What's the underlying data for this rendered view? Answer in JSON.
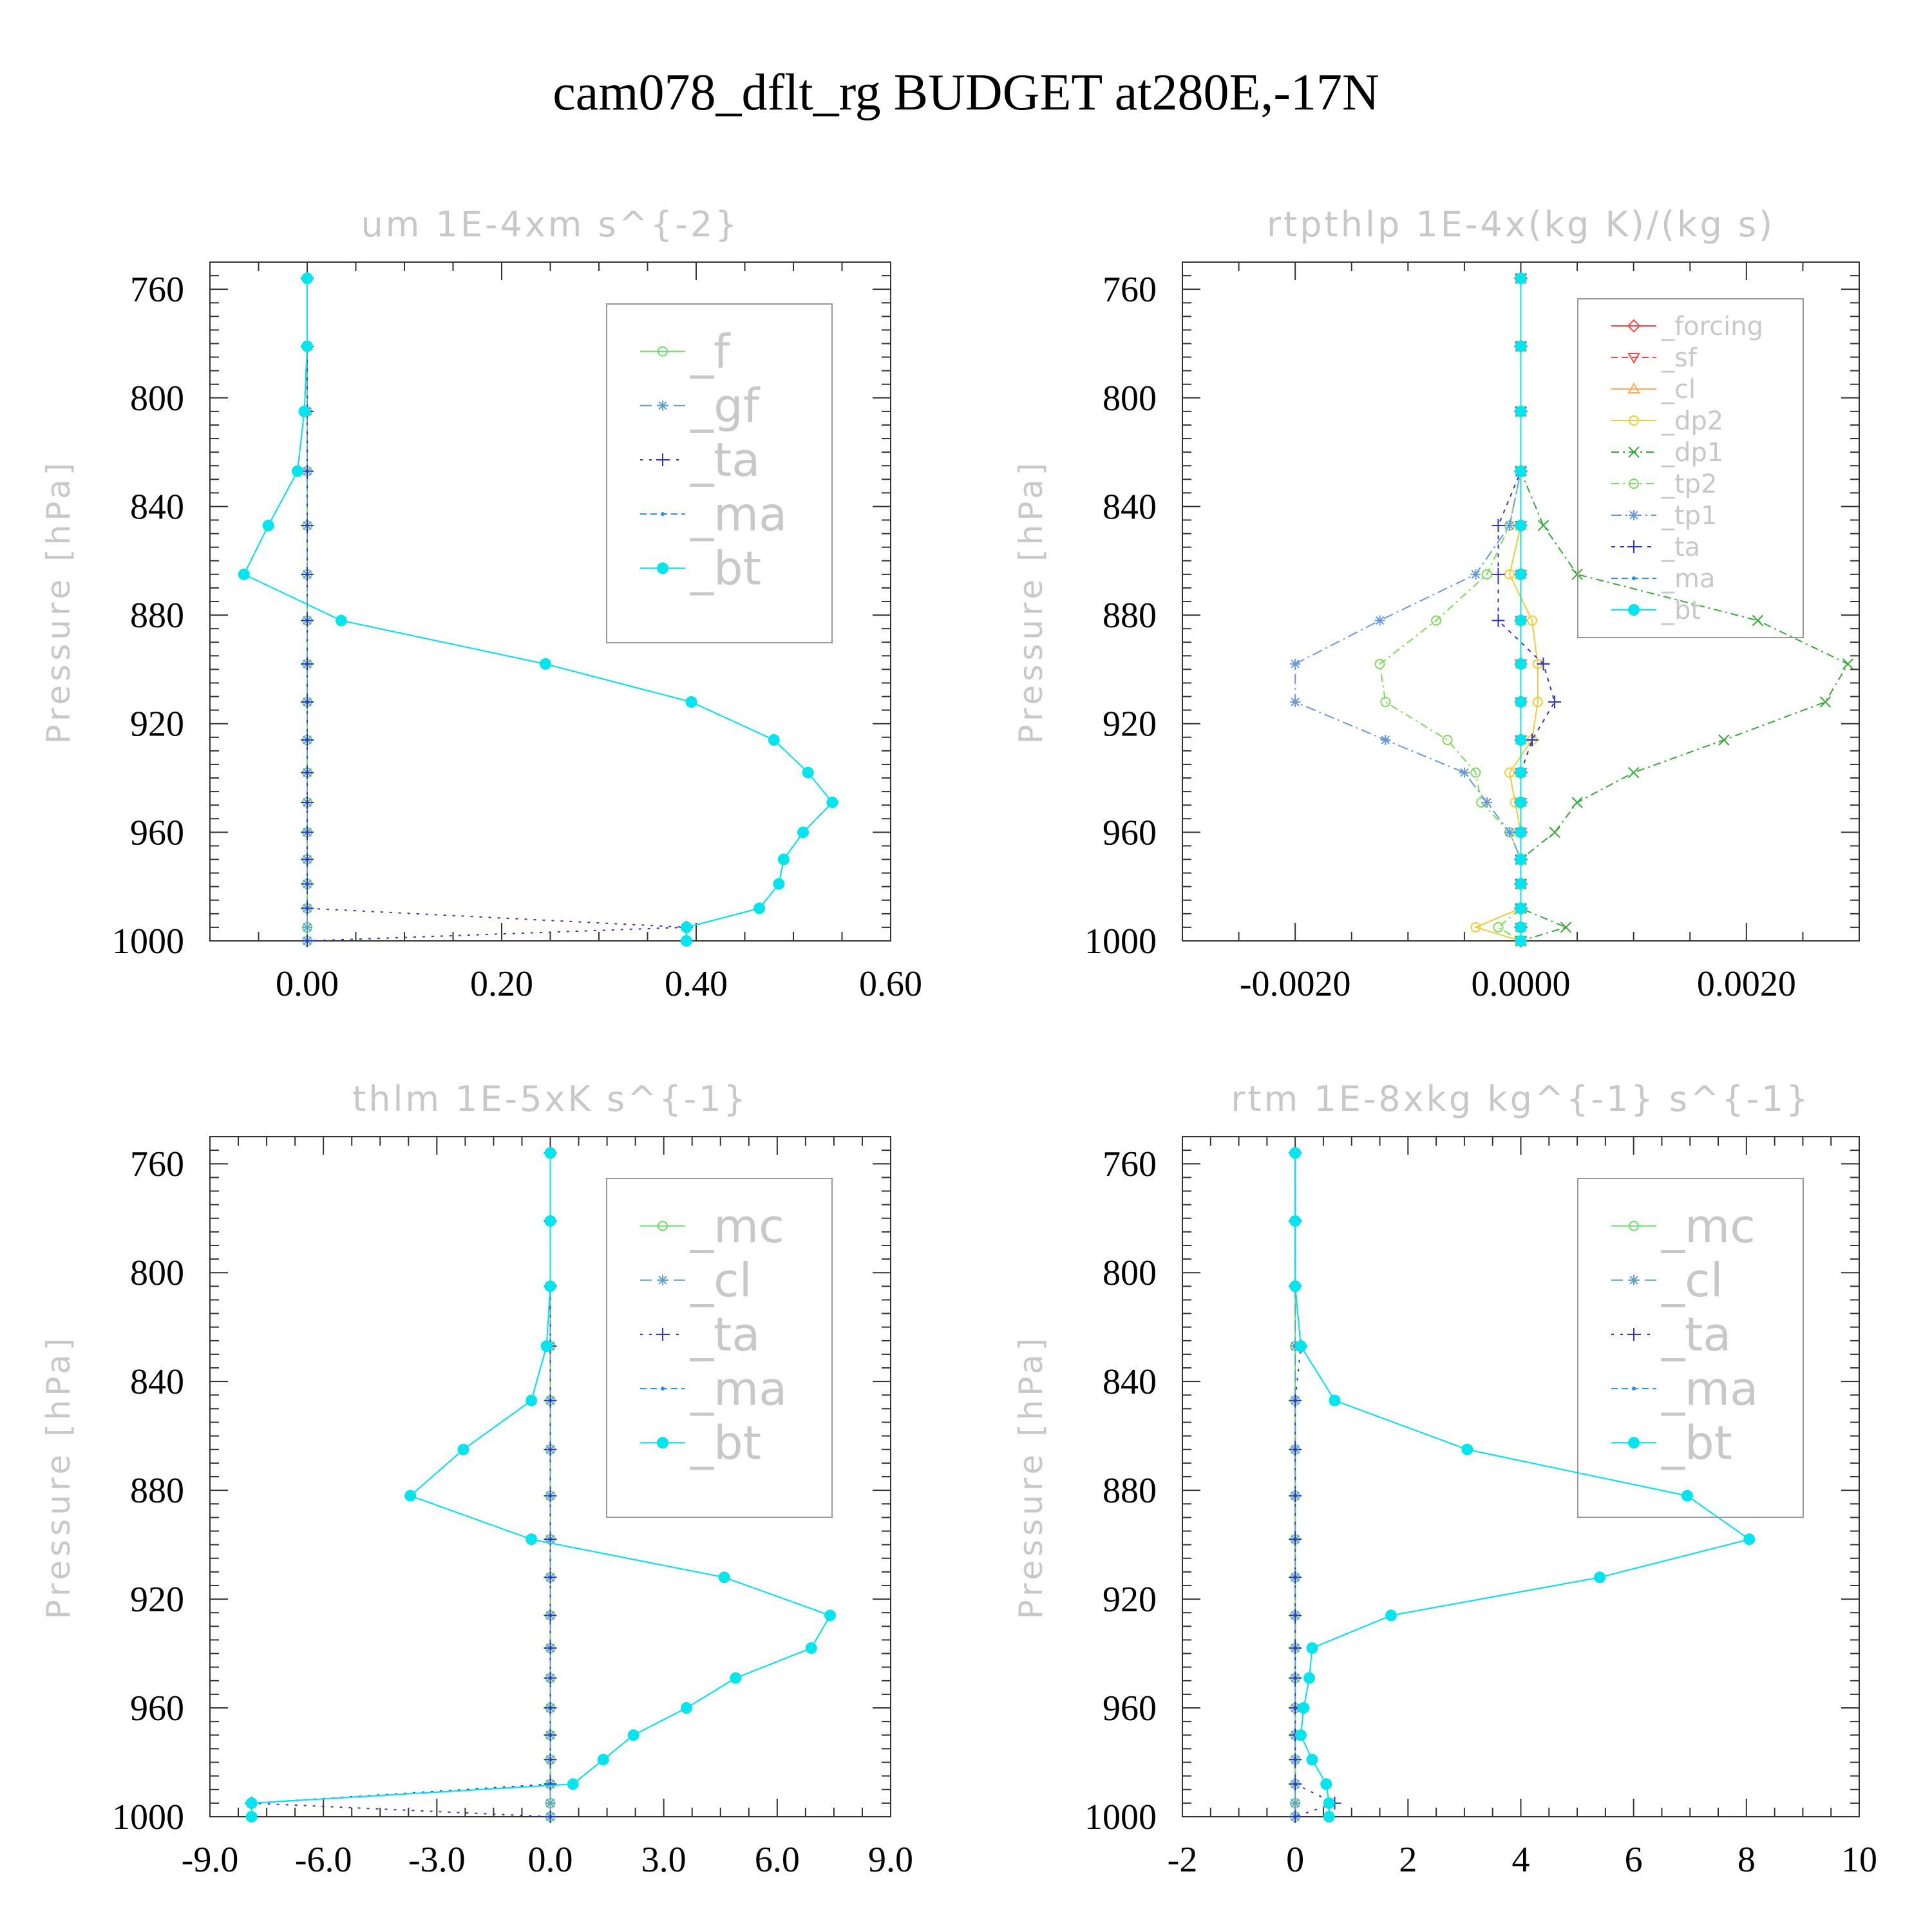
{
  "page": {
    "title": "cam078_dflt_rg  BUDGET at280E,-17N"
  },
  "colors": {
    "axis": "#333333",
    "title_gray": "#c8c8c8",
    "bt": "#00e5ee",
    "ma": "#1e90ff",
    "ta": "#3030d0",
    "f": "#66dd66",
    "mc": "#66dd66",
    "gf": "#5aa0c8",
    "cl_blue": "#5aa0c8",
    "forcing": "#ff4444",
    "sf": "#ff4444",
    "cl_orange": "#ffaa55",
    "dp2": "#eecc33",
    "dp1": "#33aa33",
    "tp2": "#77dd55",
    "tp1": "#6699dd"
  },
  "chart_data": [
    {
      "type": "line",
      "title": "um  1E-4xm s^{-2}",
      "ylabel": "Pressure [hPa]",
      "xlabel": "",
      "xlim": [
        -0.1,
        0.6
      ],
      "ylim": [
        1000,
        750
      ],
      "xticks": [
        0.0,
        0.2,
        0.4,
        0.6
      ],
      "xtick_labels": [
        "0.00",
        "0.20",
        "0.40",
        "0.60"
      ],
      "yticks": [
        760,
        800,
        840,
        880,
        920,
        960,
        1000
      ],
      "ytick_labels": [
        "760",
        "800",
        "840",
        "880",
        "920",
        "960",
        "1000"
      ],
      "y": [
        756,
        781,
        805,
        827,
        847,
        865,
        882,
        898,
        912,
        926,
        938,
        949,
        960,
        970,
        979,
        988,
        995,
        1000
      ],
      "legend": {
        "position": "top-right",
        "size": "large"
      },
      "series": [
        {
          "name": "_f",
          "color_key": "f",
          "marker": "circle-open",
          "dash": "0",
          "values": [
            0,
            0,
            0,
            0,
            0,
            0,
            0,
            0,
            0,
            0,
            0,
            0,
            0,
            0,
            0,
            0,
            0,
            0
          ]
        },
        {
          "name": "_gf",
          "color_key": "gf",
          "marker": "asterisk",
          "dash": "18,8",
          "values": [
            0,
            0,
            0,
            0,
            0,
            0,
            0,
            0,
            0,
            0,
            0,
            0,
            0,
            0,
            0,
            0,
            0,
            0
          ]
        },
        {
          "name": "_ta",
          "color_key": "ta",
          "marker": "plus",
          "dash": "4,10",
          "values": [
            0,
            0,
            0,
            0,
            0,
            0,
            0,
            0,
            0,
            0,
            0,
            0,
            0,
            0,
            0,
            0,
            0.39,
            0.0
          ]
        },
        {
          "name": "_ma",
          "color_key": "ma",
          "marker": "dot",
          "dash": "10,6",
          "values": [
            0.0,
            0.0,
            -0.003,
            -0.01,
            -0.04,
            -0.065,
            0.035,
            0.245,
            0.395,
            0.48,
            0.515,
            0.54,
            0.51,
            0.49,
            0.485,
            0.465,
            0.39,
            0.39
          ]
        },
        {
          "name": "_bt",
          "color_key": "bt",
          "marker": "dot-big",
          "dash": "0",
          "values": [
            0.0,
            0.0,
            -0.003,
            -0.01,
            -0.04,
            -0.065,
            0.035,
            0.245,
            0.395,
            0.48,
            0.515,
            0.54,
            0.51,
            0.49,
            0.485,
            0.465,
            0.39,
            0.39
          ]
        }
      ]
    },
    {
      "type": "line",
      "title": "rtpthlp  1E-4x(kg K)/(kg s)",
      "ylabel": "Pressure [hPa]",
      "xlabel": "",
      "xlim": [
        -0.003,
        0.003
      ],
      "ylim": [
        1000,
        750
      ],
      "xticks": [
        -0.002,
        0.0,
        0.002
      ],
      "xtick_labels": [
        "-0.0020",
        "0.0000",
        "0.0020"
      ],
      "yticks": [
        760,
        800,
        840,
        880,
        920,
        960,
        1000
      ],
      "ytick_labels": [
        "760",
        "800",
        "840",
        "880",
        "920",
        "960",
        "1000"
      ],
      "y": [
        756,
        781,
        805,
        827,
        847,
        865,
        882,
        898,
        912,
        926,
        938,
        949,
        960,
        970,
        979,
        988,
        995,
        1000
      ],
      "legend": {
        "position": "top-right",
        "size": "small"
      },
      "series": [
        {
          "name": "_forcing",
          "color_key": "forcing",
          "marker": "diamond-open",
          "dash": "0",
          "values": [
            0,
            0,
            0,
            0,
            0,
            0,
            0,
            0,
            0,
            0,
            0,
            0,
            0,
            0,
            0,
            0,
            0,
            0
          ]
        },
        {
          "name": "_sf",
          "color_key": "sf",
          "marker": "tri-down",
          "dash": "10,6",
          "values": [
            0,
            0,
            0,
            0,
            0,
            0,
            0,
            0,
            0,
            0,
            0,
            0,
            0,
            0,
            0,
            0,
            0,
            0
          ]
        },
        {
          "name": "_cl",
          "color_key": "cl_orange",
          "marker": "tri-up",
          "dash": "0",
          "values": [
            0,
            0,
            0,
            0,
            0,
            0,
            0,
            0,
            0,
            0,
            0,
            0,
            0,
            0,
            0,
            0,
            0,
            0
          ]
        },
        {
          "name": "_dp2",
          "color_key": "dp2",
          "marker": "circle-open",
          "dash": "0",
          "values": [
            0,
            0,
            0,
            0,
            0,
            -0.0001,
            0.0001,
            0.00015,
            0.00015,
            0.0001,
            -0.0001,
            -5e-05,
            0,
            0,
            0,
            0,
            -0.0004,
            0
          ]
        },
        {
          "name": "_dp1",
          "color_key": "dp1",
          "marker": "x",
          "dash": "12,6,3,6",
          "values": [
            0,
            0,
            0,
            0,
            0.0002,
            0.0005,
            0.0021,
            0.0029,
            0.0027,
            0.0018,
            0.001,
            0.0005,
            0.0003,
            0,
            0,
            0,
            0.0004,
            0
          ]
        },
        {
          "name": "_tp2",
          "color_key": "tp2",
          "marker": "circle-open",
          "dash": "12,6,3,6",
          "values": [
            0,
            0,
            0,
            0,
            -0.0001,
            -0.0003,
            -0.00075,
            -0.00125,
            -0.0012,
            -0.00065,
            -0.0004,
            -0.00035,
            -0.0001,
            0,
            0,
            0,
            -0.0002,
            0
          ]
        },
        {
          "name": "_tp1",
          "color_key": "tp1",
          "marker": "asterisk",
          "dash": "16,6,3,6",
          "values": [
            0,
            0,
            0,
            0,
            -0.0001,
            -0.0004,
            -0.00125,
            -0.002,
            -0.002,
            -0.0012,
            -0.0005,
            -0.0003,
            -0.0001,
            0,
            0,
            0,
            0,
            0
          ]
        },
        {
          "name": "_ta",
          "color_key": "ta",
          "marker": "plus",
          "dash": "6,8",
          "values": [
            0,
            0,
            0,
            0,
            -0.0002,
            -0.0002,
            -0.0002,
            0.0002,
            0.0003,
            0.0001,
            0,
            0,
            0,
            0,
            0,
            0,
            0,
            0
          ]
        },
        {
          "name": "_ma",
          "color_key": "ma",
          "marker": "dot",
          "dash": "10,6",
          "values": [
            0,
            0,
            0,
            0,
            0,
            0,
            0,
            0,
            0,
            0,
            0,
            0,
            0,
            0,
            0,
            0,
            0,
            0
          ]
        },
        {
          "name": "_bt",
          "color_key": "bt",
          "marker": "dot-big",
          "dash": "0",
          "values": [
            0,
            0,
            0,
            0,
            0,
            0,
            0,
            0,
            0,
            0,
            0,
            0,
            0,
            0,
            0,
            0,
            0,
            0
          ]
        }
      ]
    },
    {
      "type": "line",
      "title": "thlm  1E-5xK s^{-1}",
      "ylabel": "Pressure [hPa]",
      "xlabel": "",
      "xlim": [
        -9,
        9
      ],
      "ylim": [
        1000,
        750
      ],
      "xticks": [
        -9,
        -6,
        -3,
        0,
        3,
        6,
        9
      ],
      "xtick_labels": [
        "-9.0",
        "-6.0",
        "-3.0",
        "0.0",
        "3.0",
        "6.0",
        "9.0"
      ],
      "yticks": [
        760,
        800,
        840,
        880,
        920,
        960,
        1000
      ],
      "ytick_labels": [
        "760",
        "800",
        "840",
        "880",
        "920",
        "960",
        "1000"
      ],
      "y": [
        756,
        781,
        805,
        827,
        847,
        865,
        882,
        898,
        912,
        926,
        938,
        949,
        960,
        970,
        979,
        988,
        995,
        1000
      ],
      "legend": {
        "position": "top-right",
        "size": "large"
      },
      "series": [
        {
          "name": "_mc",
          "color_key": "mc",
          "marker": "circle-open",
          "dash": "0",
          "values": [
            0,
            0,
            0,
            0,
            0,
            0,
            0,
            0,
            0,
            0,
            0,
            0,
            0,
            0,
            0,
            0,
            0,
            0
          ]
        },
        {
          "name": "_cl",
          "color_key": "cl_blue",
          "marker": "asterisk",
          "dash": "18,8",
          "values": [
            0,
            0,
            0,
            0,
            0,
            0,
            0,
            0,
            0,
            0,
            0,
            0,
            0,
            0,
            0,
            0,
            0,
            0
          ]
        },
        {
          "name": "_ta",
          "color_key": "ta",
          "marker": "plus",
          "dash": "4,10",
          "values": [
            0,
            0,
            0,
            0,
            0,
            0,
            0,
            0,
            0,
            0,
            0,
            0,
            0,
            0,
            0,
            0,
            -7.9,
            0
          ]
        },
        {
          "name": "_ma",
          "color_key": "ma",
          "marker": "dot",
          "dash": "10,6",
          "values": [
            0,
            0,
            0,
            -0.1,
            -0.5,
            -2.3,
            -3.7,
            -0.5,
            4.6,
            7.4,
            6.9,
            4.9,
            3.6,
            2.2,
            1.4,
            0.6,
            -7.9,
            -7.9
          ]
        },
        {
          "name": "_bt",
          "color_key": "bt",
          "marker": "dot-big",
          "dash": "0",
          "values": [
            0,
            0,
            0,
            -0.1,
            -0.5,
            -2.3,
            -3.7,
            -0.5,
            4.6,
            7.4,
            6.9,
            4.9,
            3.6,
            2.2,
            1.4,
            0.6,
            -7.9,
            -7.9
          ]
        }
      ]
    },
    {
      "type": "line",
      "title": "rtm  1E-8xkg kg^{-1} s^{-1}",
      "ylabel": "Pressure [hPa]",
      "xlabel": "",
      "xlim": [
        -2,
        10
      ],
      "ylim": [
        1000,
        750
      ],
      "xticks": [
        -2,
        0,
        2,
        4,
        6,
        8,
        10
      ],
      "xtick_labels": [
        "-2",
        "0",
        "2",
        "4",
        "6",
        "8",
        "10"
      ],
      "yticks": [
        760,
        800,
        840,
        880,
        920,
        960,
        1000
      ],
      "ytick_labels": [
        "760",
        "800",
        "840",
        "880",
        "920",
        "960",
        "1000"
      ],
      "y": [
        756,
        781,
        805,
        827,
        847,
        865,
        882,
        898,
        912,
        926,
        938,
        949,
        960,
        970,
        979,
        988,
        995,
        1000
      ],
      "legend": {
        "position": "top-right",
        "size": "large"
      },
      "series": [
        {
          "name": "_mc",
          "color_key": "mc",
          "marker": "circle-open",
          "dash": "0",
          "values": [
            0,
            0,
            0,
            0,
            0,
            0,
            0,
            0,
            0,
            0,
            0,
            0,
            0,
            0,
            0,
            0,
            0,
            0
          ]
        },
        {
          "name": "_cl",
          "color_key": "cl_blue",
          "marker": "asterisk",
          "dash": "18,8",
          "values": [
            0,
            0,
            0,
            0,
            0,
            0,
            0,
            0,
            0,
            0,
            0,
            0,
            0,
            0,
            0,
            0,
            0,
            0
          ]
        },
        {
          "name": "_ta",
          "color_key": "ta",
          "marker": "plus",
          "dash": "4,10",
          "values": [
            0,
            0,
            0,
            0.1,
            0,
            0,
            0,
            0,
            0,
            0,
            0,
            0,
            0,
            0,
            0,
            0,
            0.7,
            0
          ]
        },
        {
          "name": "_ma",
          "color_key": "ma",
          "marker": "dot",
          "dash": "10,6",
          "values": [
            0,
            0,
            0,
            0.1,
            0.7,
            3.05,
            6.95,
            8.05,
            5.4,
            1.7,
            0.3,
            0.25,
            0.15,
            0.1,
            0.3,
            0.55,
            0.6,
            0.6
          ]
        },
        {
          "name": "_bt",
          "color_key": "bt",
          "marker": "dot-big",
          "dash": "0",
          "values": [
            0,
            0,
            0,
            0.1,
            0.7,
            3.05,
            6.95,
            8.05,
            5.4,
            1.7,
            0.3,
            0.25,
            0.15,
            0.1,
            0.3,
            0.55,
            0.6,
            0.6
          ]
        }
      ]
    }
  ]
}
